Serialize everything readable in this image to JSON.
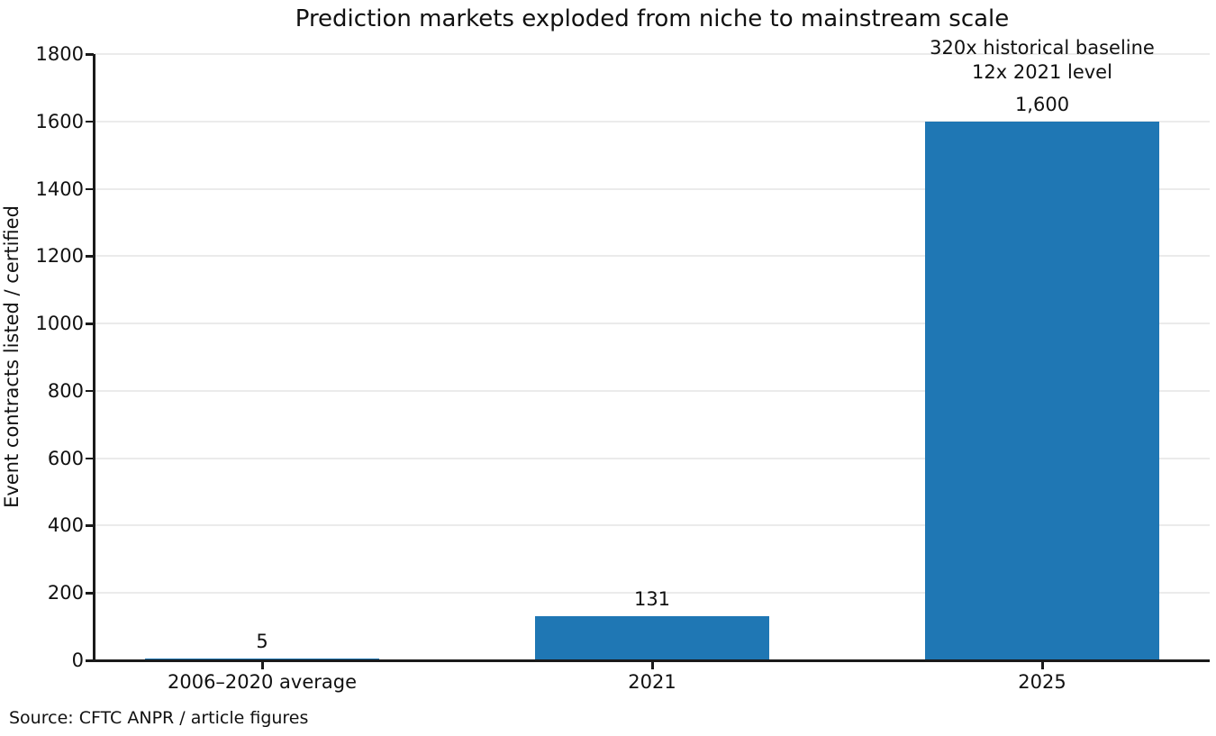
{
  "chart_data": {
    "type": "bar",
    "title": "Prediction markets exploded from niche to mainstream scale",
    "categories": [
      "2006–2020 average",
      "2021",
      "2025"
    ],
    "values": [
      5,
      131,
      1600
    ],
    "bar_labels": [
      "5",
      "131",
      "1,600"
    ],
    "xlabel": "",
    "ylabel": "Event contracts listed / certified",
    "ylim": [
      0,
      1800
    ],
    "yticks": [
      0,
      200,
      400,
      600,
      800,
      1000,
      1200,
      1400,
      1600,
      1800
    ],
    "grid": "horizontal",
    "legend": "none",
    "bar_color": "#1f77b4",
    "grid_color": "#ebebeb",
    "annotation": {
      "lines": [
        "320x historical baseline",
        "12x 2021 level"
      ],
      "target_index": 2
    },
    "source_note": "Source: CFTC ANPR / article figures"
  }
}
